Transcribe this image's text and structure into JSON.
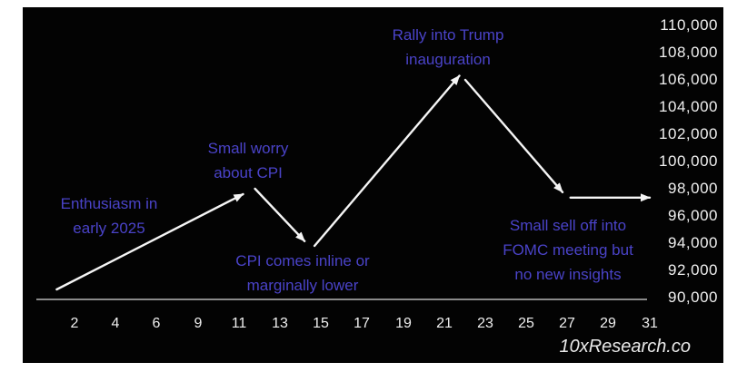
{
  "colors": {
    "page_background": "#ffffff",
    "chart_background": "#030303",
    "annotation_text": "#4a43c8",
    "price_line": "#f5f5f5",
    "axis_line": "#8a8a8a",
    "tick_text": "#efefef",
    "watermark_text": "#e9e9e9"
  },
  "chart_data": {
    "type": "line",
    "title": "",
    "xlabel": "",
    "ylabel": "",
    "x_ticks": [
      "2",
      "4",
      "6",
      "9",
      "11",
      "13",
      "15",
      "17",
      "19",
      "21",
      "23",
      "25",
      "27",
      "29",
      "31"
    ],
    "y_ticks": [
      "110,000",
      "108,000",
      "106,000",
      "104,000",
      "102,000",
      "100,000",
      "98,000",
      "96,000",
      "94,000",
      "92,000",
      "90,000"
    ],
    "x_domain_days": [
      2,
      31
    ],
    "ylim": [
      90000,
      110000
    ],
    "grid": false,
    "legend": false,
    "segments": [
      {
        "x1": 1.1,
        "y1": 90600,
        "x2": 10.5,
        "y2": 97600,
        "arrow": true
      },
      {
        "x1": 11.1,
        "y1": 98000,
        "x2": 13.6,
        "y2": 94150,
        "arrow": true
      },
      {
        "x1": 14.1,
        "y1": 93800,
        "x2": 21.4,
        "y2": 106300,
        "arrow": true
      },
      {
        "x1": 21.7,
        "y1": 106000,
        "x2": 26.6,
        "y2": 97750,
        "arrow": true
      },
      {
        "x1": 27.0,
        "y1": 97350,
        "x2": 31.0,
        "y2": 97350,
        "arrow": true
      }
    ],
    "annotations": {
      "enthusiasm": [
        "Enthusiasm in",
        "early 2025"
      ],
      "small_worry": [
        "Small worry",
        "about CPI"
      ],
      "cpi_inline": [
        "CPI comes inline or",
        "marginally lower"
      ],
      "rally": [
        "Rally into Trump",
        "inauguration"
      ],
      "sell_off": [
        "Small sell off into",
        "FOMC meeting but",
        "no new insights"
      ]
    },
    "watermark": "10xResearch.co"
  }
}
